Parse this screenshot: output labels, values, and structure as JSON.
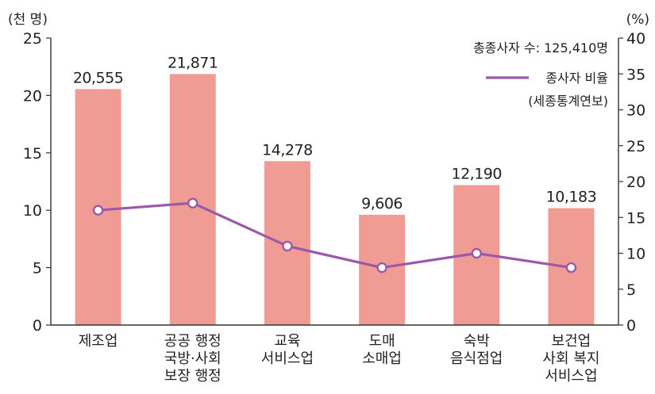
{
  "chart_data": {
    "type": "bar",
    "left_unit": "(천 명)",
    "right_unit": "(%)",
    "categories": [
      [
        "제조업"
      ],
      [
        "공공 행정",
        "국방·사회",
        "보장 행정"
      ],
      [
        "교육",
        "서비스업"
      ],
      [
        "도매",
        "소매업"
      ],
      [
        "숙박",
        "음식점업"
      ],
      [
        "보건업",
        "사회 복지",
        "서비스업"
      ]
    ],
    "bar_labels": [
      "20,555",
      "21,871",
      "14,278",
      "9,606",
      "12,190",
      "10,183"
    ],
    "series": [
      {
        "values": [
          20.555,
          21.871,
          14.278,
          9.606,
          12.19,
          10.183
        ],
        "axis": "left",
        "kind": "bar"
      },
      {
        "name": "종사자 비율",
        "values": [
          16,
          17,
          11,
          8,
          10,
          8
        ],
        "axis": "right",
        "kind": "line"
      }
    ],
    "ylim_left": [
      0,
      25
    ],
    "yticks_left": [
      0,
      5,
      10,
      15,
      20,
      25
    ],
    "ylim_right": [
      0,
      40
    ],
    "yticks_right": [
      0,
      5,
      10,
      15,
      20,
      25,
      30,
      35,
      40
    ],
    "legend": {
      "total_text": "총종사자 수: 125,410명",
      "line_name": "종사자 비율",
      "source": "(세종통계연보)",
      "placement": "top-right"
    },
    "colors": {
      "bar": "#f09c95",
      "line": "#9a5aa8",
      "axis": "#333333"
    }
  }
}
